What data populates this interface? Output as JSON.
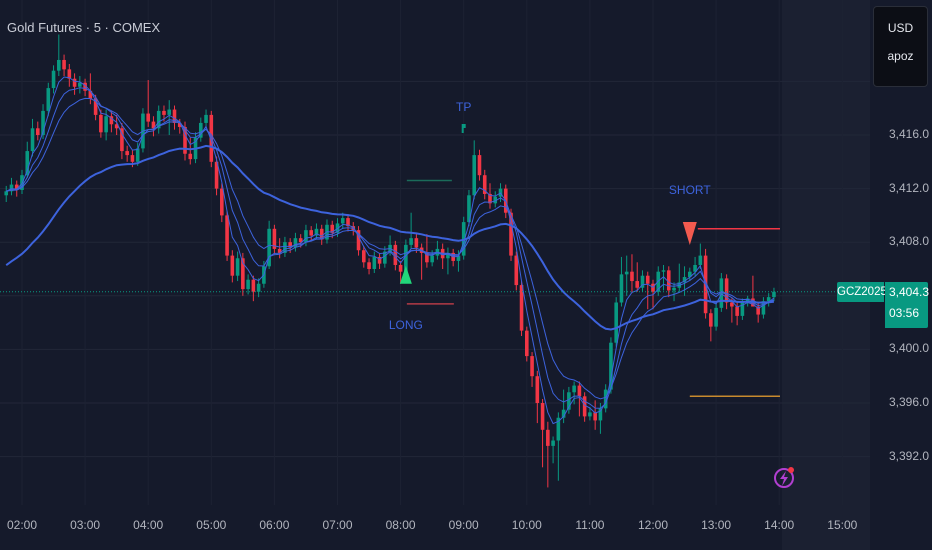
{
  "header": {
    "title": "Gold Futures · 5 · COMEX"
  },
  "currency_box": {
    "currency": "USD",
    "unit": "apoz"
  },
  "price_axis": {
    "labels": [
      "3,416.0",
      "3,412.0",
      "3,408.0",
      "3,400.0",
      "3,396.0",
      "3,392.0"
    ],
    "values": [
      3416,
      3412,
      3408,
      3400,
      3396,
      3392
    ]
  },
  "time_axis": {
    "labels": [
      "02:00",
      "03:00",
      "04:00",
      "05:00",
      "06:00",
      "07:00",
      "08:00",
      "09:00",
      "10:00",
      "11:00",
      "12:00",
      "13:00",
      "14:00",
      "15:00"
    ]
  },
  "last_price": {
    "symbol": "GCZ2025",
    "price": "3,404.3",
    "countdown": "03:56",
    "value": 3404.3
  },
  "colors": {
    "background": "#151a2b",
    "up": "#089981",
    "down": "#f23645",
    "ma": "#3d63dd",
    "grid": "#222738"
  },
  "icons": {
    "alert": "lightning-icon"
  },
  "chart_data": {
    "type": "candlestick",
    "title": "Gold Futures · 5 · COMEX",
    "first_bar_time": "01:45",
    "interval_minutes": 5,
    "ylim": [
      3388,
      3424
    ],
    "grid": true,
    "candles": [
      [
        3411.5,
        3412.2,
        3411.0,
        3411.8
      ],
      [
        3411.8,
        3412.8,
        3411.5,
        3412.3
      ],
      [
        3412.3,
        3412.6,
        3411.4,
        3411.9
      ],
      [
        3411.9,
        3413.4,
        3411.6,
        3413.0
      ],
      [
        3413.0,
        3415.5,
        3412.8,
        3414.8
      ],
      [
        3414.8,
        3417.2,
        3414.4,
        3416.5
      ],
      [
        3416.5,
        3417.0,
        3415.6,
        3416.0
      ],
      [
        3416.0,
        3418.3,
        3415.7,
        3417.8
      ],
      [
        3417.8,
        3419.9,
        3417.4,
        3419.5
      ],
      [
        3419.5,
        3421.2,
        3419.1,
        3420.8
      ],
      [
        3420.8,
        3423.5,
        3420.4,
        3421.6
      ],
      [
        3421.6,
        3422.0,
        3420.4,
        3420.9
      ],
      [
        3420.9,
        3421.3,
        3419.6,
        3420.2
      ],
      [
        3420.2,
        3420.6,
        3419.0,
        3419.6
      ],
      [
        3419.6,
        3420.4,
        3419.1,
        3419.9
      ],
      [
        3419.9,
        3420.2,
        3418.9,
        3419.3
      ],
      [
        3419.3,
        3420.6,
        3418.3,
        3418.7
      ],
      [
        3418.7,
        3419.0,
        3417.1,
        3417.5
      ],
      [
        3417.5,
        3417.9,
        3415.8,
        3416.2
      ],
      [
        3416.2,
        3417.9,
        3415.6,
        3417.4
      ],
      [
        3417.4,
        3417.8,
        3416.2,
        3416.8
      ],
      [
        3416.8,
        3417.5,
        3416.0,
        3416.5
      ],
      [
        3416.5,
        3416.9,
        3414.2,
        3414.8
      ],
      [
        3414.8,
        3415.2,
        3414.0,
        3414.5
      ],
      [
        3414.5,
        3414.9,
        3413.6,
        3414.0
      ],
      [
        3414.0,
        3415.4,
        3413.7,
        3415.0
      ],
      [
        3415.0,
        3418.0,
        3414.7,
        3417.6
      ],
      [
        3417.6,
        3420.1,
        3416.6,
        3417.0
      ],
      [
        3417.0,
        3417.4,
        3415.9,
        3416.5
      ],
      [
        3416.5,
        3418.2,
        3416.1,
        3417.8
      ],
      [
        3417.8,
        3418.2,
        3417.0,
        3417.5
      ],
      [
        3417.5,
        3418.6,
        3416.0,
        3417.9
      ],
      [
        3417.9,
        3418.2,
        3416.4,
        3416.9
      ],
      [
        3416.9,
        3417.2,
        3416.1,
        3416.6
      ],
      [
        3416.6,
        3417.0,
        3414.1,
        3414.6
      ],
      [
        3414.6,
        3415.8,
        3413.8,
        3414.2
      ],
      [
        3414.2,
        3416.2,
        3413.9,
        3415.8
      ],
      [
        3415.8,
        3417.3,
        3415.5,
        3416.9
      ],
      [
        3416.9,
        3417.9,
        3416.5,
        3417.5
      ],
      [
        3417.5,
        3417.8,
        3413.6,
        3414.0
      ],
      [
        3414.0,
        3414.4,
        3411.5,
        3412.0
      ],
      [
        3412.0,
        3412.4,
        3409.5,
        3410.0
      ],
      [
        3410.0,
        3410.3,
        3406.6,
        3407.0
      ],
      [
        3407.0,
        3407.4,
        3405.0,
        3405.5
      ],
      [
        3405.5,
        3407.3,
        3405.1,
        3406.8
      ],
      [
        3406.8,
        3407.2,
        3404.0,
        3404.5
      ],
      [
        3404.5,
        3405.6,
        3404.1,
        3405.2
      ],
      [
        3405.2,
        3405.5,
        3403.6,
        3404.3
      ],
      [
        3404.3,
        3405.3,
        3403.9,
        3404.9
      ],
      [
        3404.9,
        3406.6,
        3404.6,
        3406.2
      ],
      [
        3406.2,
        3409.6,
        3406.0,
        3409.0
      ],
      [
        3409.0,
        3409.3,
        3407.1,
        3407.5
      ],
      [
        3407.5,
        3408.3,
        3406.8,
        3407.2
      ],
      [
        3407.2,
        3408.4,
        3406.9,
        3408.0
      ],
      [
        3408.0,
        3408.3,
        3407.2,
        3407.6
      ],
      [
        3407.6,
        3408.7,
        3407.3,
        3408.3
      ],
      [
        3408.3,
        3408.6,
        3407.6,
        3408.0
      ],
      [
        3408.0,
        3409.3,
        3407.7,
        3408.9
      ],
      [
        3408.9,
        3409.2,
        3408.1,
        3408.5
      ],
      [
        3408.5,
        3409.4,
        3408.2,
        3409.0
      ],
      [
        3409.0,
        3409.3,
        3407.8,
        3408.2
      ],
      [
        3408.2,
        3409.7,
        3407.9,
        3409.3
      ],
      [
        3409.3,
        3409.6,
        3408.3,
        3408.7
      ],
      [
        3408.7,
        3409.8,
        3408.4,
        3409.4
      ],
      [
        3409.4,
        3410.2,
        3409.0,
        3409.8
      ],
      [
        3409.8,
        3410.1,
        3408.8,
        3409.2
      ],
      [
        3409.2,
        3409.5,
        3408.5,
        3408.9
      ],
      [
        3408.9,
        3409.2,
        3407.0,
        3407.4
      ],
      [
        3407.4,
        3407.7,
        3406.1,
        3406.5
      ],
      [
        3406.5,
        3406.8,
        3405.6,
        3406.0
      ],
      [
        3406.0,
        3407.3,
        3405.7,
        3406.9
      ],
      [
        3406.9,
        3407.2,
        3406.0,
        3406.4
      ],
      [
        3406.4,
        3407.7,
        3406.1,
        3407.3
      ],
      [
        3407.3,
        3408.5,
        3407.0,
        3407.8
      ],
      [
        3407.8,
        3408.1,
        3405.9,
        3406.3
      ],
      [
        3406.3,
        3406.6,
        3404.9,
        3405.8
      ],
      [
        3405.8,
        3408.2,
        3405.5,
        3407.8
      ],
      [
        3407.8,
        3410.2,
        3407.5,
        3408.3
      ],
      [
        3408.3,
        3408.6,
        3407.2,
        3407.6
      ],
      [
        3407.6,
        3407.9,
        3405.2,
        3407.2
      ],
      [
        3407.2,
        3408.6,
        3406.1,
        3406.5
      ],
      [
        3406.5,
        3407.4,
        3406.2,
        3407.0
      ],
      [
        3407.0,
        3408.1,
        3406.7,
        3407.5
      ],
      [
        3407.5,
        3407.9,
        3406.0,
        3406.8
      ],
      [
        3406.8,
        3407.6,
        3405.6,
        3407.2
      ],
      [
        3407.2,
        3407.5,
        3406.2,
        3406.6
      ],
      [
        3406.6,
        3407.4,
        3405.8,
        3407.0
      ],
      [
        3407.0,
        3409.9,
        3406.7,
        3409.5
      ],
      [
        3409.5,
        3411.9,
        3409.2,
        3411.5
      ],
      [
        3411.5,
        3415.6,
        3411.2,
        3414.5
      ],
      [
        3414.5,
        3414.9,
        3412.6,
        3413.0
      ],
      [
        3413.0,
        3413.4,
        3411.2,
        3411.6
      ],
      [
        3411.6,
        3412.4,
        3410.5,
        3410.9
      ],
      [
        3410.9,
        3411.8,
        3410.6,
        3411.4
      ],
      [
        3411.4,
        3412.4,
        3411.0,
        3412.0
      ],
      [
        3412.0,
        3412.3,
        3409.8,
        3410.2
      ],
      [
        3410.2,
        3410.5,
        3406.6,
        3407.0
      ],
      [
        3407.0,
        3407.3,
        3404.4,
        3404.8
      ],
      [
        3404.8,
        3405.1,
        3401.0,
        3401.4
      ],
      [
        3401.4,
        3401.7,
        3399.1,
        3399.5
      ],
      [
        3399.5,
        3399.8,
        3397.2,
        3398.0
      ],
      [
        3398.0,
        3398.4,
        3394.5,
        3396.0
      ],
      [
        3396.0,
        3396.3,
        3391.2,
        3394.0
      ],
      [
        3394.0,
        3394.6,
        3389.7,
        3392.8
      ],
      [
        3392.8,
        3393.5,
        3391.5,
        3393.2
      ],
      [
        3393.2,
        3395.3,
        3390.2,
        3394.9
      ],
      [
        3394.9,
        3397.0,
        3394.5,
        3395.5
      ],
      [
        3395.5,
        3397.2,
        3395.2,
        3396.8
      ],
      [
        3396.8,
        3397.6,
        3395.9,
        3397.3
      ],
      [
        3397.3,
        3397.6,
        3395.0,
        3396.5
      ],
      [
        3396.5,
        3396.8,
        3394.6,
        3395.0
      ],
      [
        3395.0,
        3395.7,
        3394.7,
        3395.3
      ],
      [
        3395.3,
        3396.2,
        3394.0,
        3394.7
      ],
      [
        3394.7,
        3396.0,
        3393.7,
        3395.6
      ],
      [
        3395.6,
        3397.4,
        3395.3,
        3397.0
      ],
      [
        3397.0,
        3400.9,
        3396.7,
        3400.5
      ],
      [
        3400.5,
        3403.9,
        3400.2,
        3403.5
      ],
      [
        3403.5,
        3406.9,
        3403.2,
        3405.6
      ],
      [
        3405.6,
        3407.0,
        3404.0,
        3405.8
      ],
      [
        3405.8,
        3407.1,
        3404.2,
        3405.1
      ],
      [
        3405.1,
        3406.5,
        3404.3,
        3404.6
      ],
      [
        3404.6,
        3405.9,
        3404.3,
        3405.5
      ],
      [
        3405.5,
        3405.8,
        3403.0,
        3404.9
      ],
      [
        3404.9,
        3405.2,
        3403.0,
        3404.3
      ],
      [
        3404.3,
        3406.2,
        3404.0,
        3405.8
      ],
      [
        3405.8,
        3406.3,
        3404.4,
        3405.9
      ],
      [
        3405.9,
        3406.2,
        3403.9,
        3404.4
      ],
      [
        3404.4,
        3405.0,
        3403.6,
        3404.6
      ],
      [
        3404.6,
        3406.4,
        3404.3,
        3405.0
      ],
      [
        3405.0,
        3406.2,
        3404.0,
        3405.4
      ],
      [
        3405.4,
        3406.1,
        3405.1,
        3405.8
      ],
      [
        3405.8,
        3406.9,
        3405.5,
        3406.3
      ],
      [
        3406.3,
        3407.9,
        3406.0,
        3407.0
      ],
      [
        3407.0,
        3407.5,
        3402.3,
        3402.7
      ],
      [
        3402.7,
        3403.0,
        3400.6,
        3401.7
      ],
      [
        3401.7,
        3403.5,
        3401.4,
        3403.1
      ],
      [
        3403.1,
        3405.7,
        3402.8,
        3405.3
      ],
      [
        3405.3,
        3405.6,
        3403.0,
        3403.5
      ],
      [
        3403.5,
        3403.8,
        3402.0,
        3403.2
      ],
      [
        3403.2,
        3403.5,
        3401.8,
        3402.5
      ],
      [
        3402.5,
        3403.8,
        3402.2,
        3403.5
      ],
      [
        3403.5,
        3404.0,
        3403.2,
        3403.8
      ],
      [
        3403.8,
        3405.5,
        3403.5,
        3403.2
      ],
      [
        3403.2,
        3403.5,
        3402.0,
        3402.6
      ],
      [
        3402.6,
        3403.9,
        3402.3,
        3403.6
      ],
      [
        3403.6,
        3404.2,
        3403.2,
        3403.9
      ],
      [
        3403.9,
        3404.6,
        3403.6,
        3404.3
      ]
    ],
    "annotations": {
      "long": {
        "label": "LONG",
        "time": "08:05",
        "price": 3405.2,
        "stop": 3403.4,
        "stop_color": "#b33a46"
      },
      "tp": {
        "label": "TP",
        "time": "09:00",
        "target": 3412.6,
        "target_color": "#1b6b5a"
      },
      "short": {
        "label": "SHORT",
        "time": "12:35",
        "price": 3409.0,
        "stop_color": "#f23645",
        "target": 3396.5,
        "target_color": "#c88a2e"
      }
    }
  }
}
